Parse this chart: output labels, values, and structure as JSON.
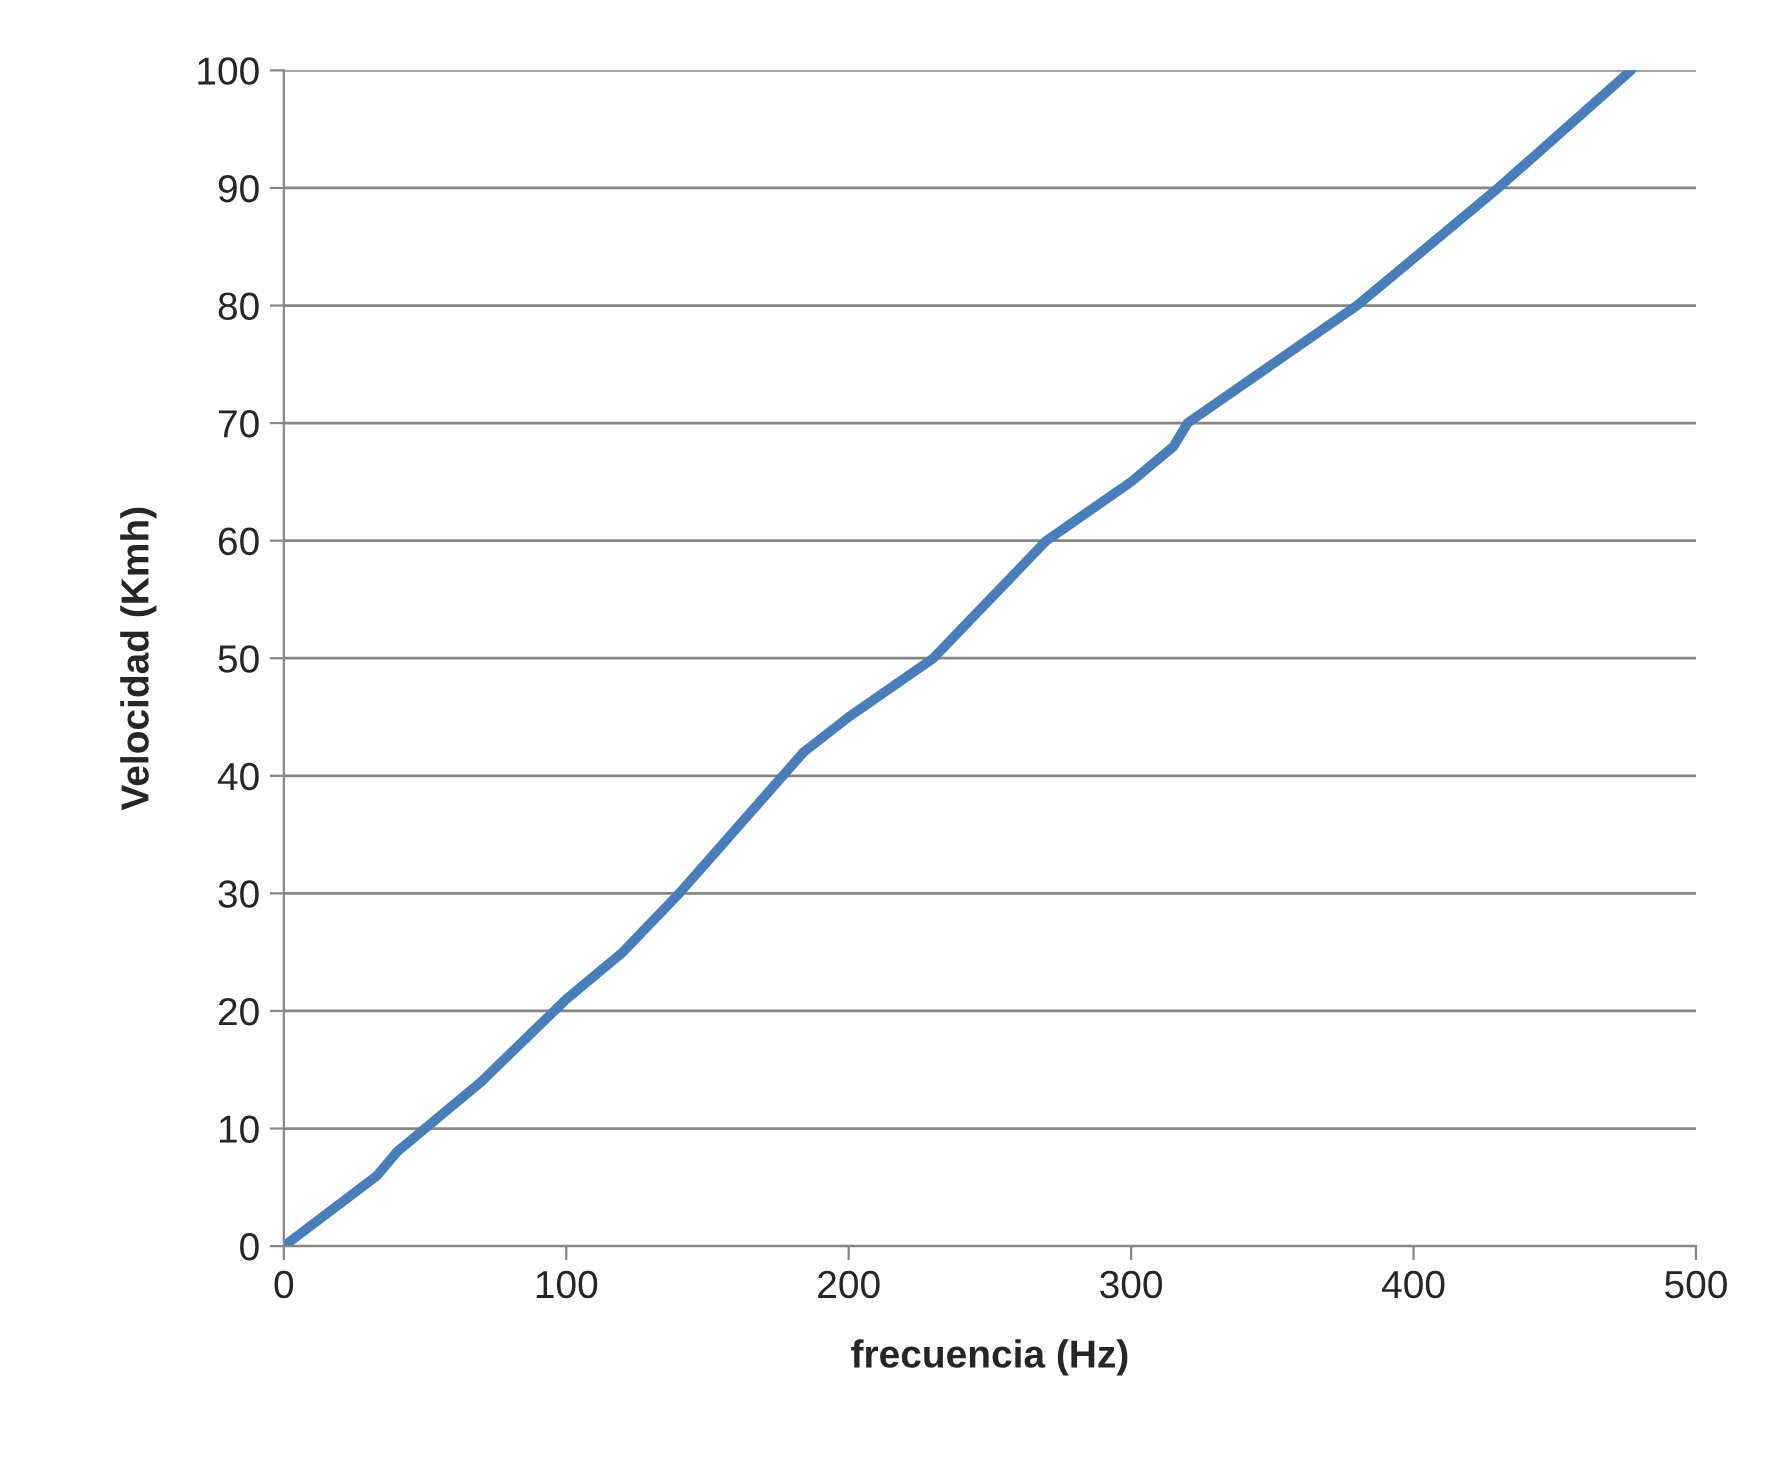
{
  "chart_data": {
    "type": "line",
    "xlabel": "frecuencia (Hz)",
    "ylabel": "Velocidad (Kmh)",
    "x": [
      0,
      33,
      40,
      70,
      100,
      120,
      140,
      184,
      200,
      230,
      250,
      270,
      300,
      315,
      320,
      350,
      380,
      400,
      430,
      477
    ],
    "series": [
      {
        "color": "#4a7ebb",
        "values": [
          0,
          6,
          8,
          14,
          21,
          25,
          30,
          42,
          45,
          50,
          55,
          60,
          65,
          68,
          70,
          75,
          80,
          84,
          90,
          100
        ]
      }
    ],
    "xlim": [
      0,
      500
    ],
    "xticks": [
      0,
      100,
      200,
      300,
      400,
      500
    ],
    "ylim": [
      0,
      100
    ],
    "yticks": [
      0,
      10,
      20,
      30,
      40,
      50,
      60,
      70,
      80,
      90,
      100
    ],
    "grid": "y",
    "legend": false,
    "marker": "none",
    "line_style": "solid"
  }
}
